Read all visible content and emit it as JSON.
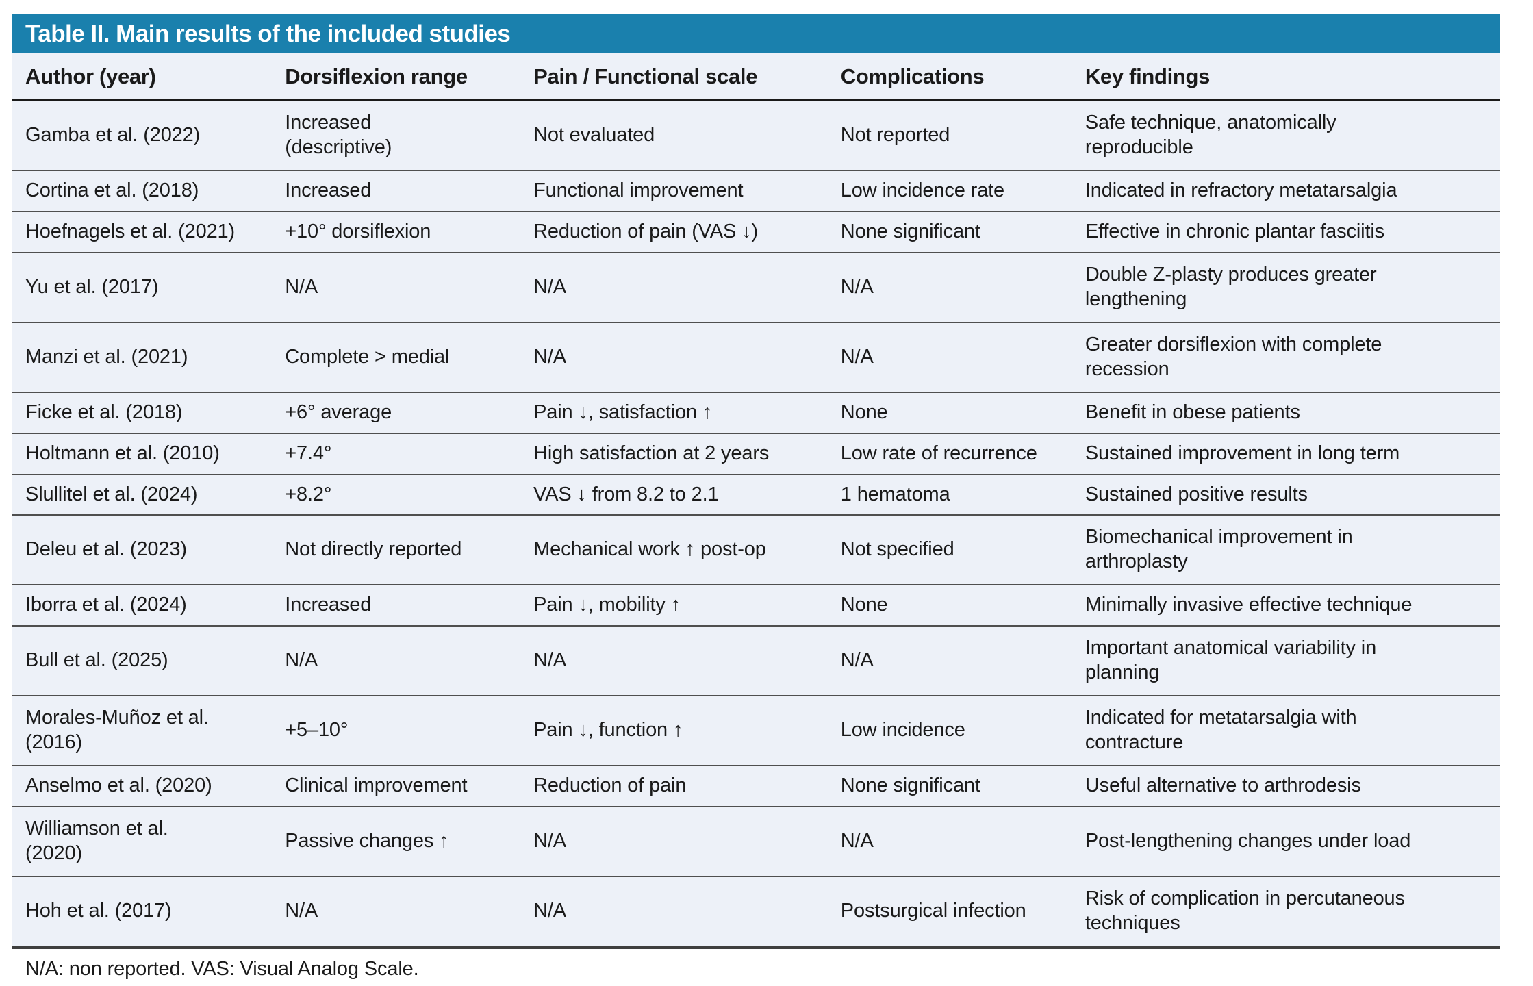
{
  "colors": {
    "header_bg": "#1a80ad",
    "header_text": "#ffffff",
    "row_bg": "#edf1f8",
    "row_line": "#4f4f4f",
    "strong_line": "#1a1a1a",
    "bottom_line": "#3f3f3f",
    "text": "#1a1a1a"
  },
  "table": {
    "title": "Table II. Main results of the included studies",
    "columns": [
      "Author (year)",
      "Dorsiflexion range",
      "Pain / Functional scale",
      "Complications",
      "Key findings"
    ],
    "rows": [
      {
        "author": "Gamba et al. (2022)",
        "dorsiflexion": "Increased\n(descriptive)",
        "pain": "Not evaluated",
        "complications": "Not reported",
        "key_findings": "Safe technique, anatomically\nreproducible"
      },
      {
        "author": "Cortina et al. (2018)",
        "dorsiflexion": "Increased",
        "pain": "Functional improvement",
        "complications": "Low incidence rate",
        "key_findings": "Indicated in refractory metatarsalgia"
      },
      {
        "author": "Hoefnagels et al. (2021)",
        "dorsiflexion": "+10° dorsiflexion",
        "pain": "Reduction of pain (VAS ↓)",
        "complications": "None significant",
        "key_findings": "Effective in chronic plantar fasciitis"
      },
      {
        "author": "Yu et al. (2017)",
        "dorsiflexion": "N/A",
        "pain": "N/A",
        "complications": "N/A",
        "key_findings": "Double Z-plasty produces greater\nlengthening"
      },
      {
        "author": "Manzi et al. (2021)",
        "dorsiflexion": "Complete > medial",
        "pain": "N/A",
        "complications": "N/A",
        "key_findings": "Greater dorsiflexion with complete\nrecession"
      },
      {
        "author": "Ficke et al. (2018)",
        "dorsiflexion": "+6° average",
        "pain": "Pain ↓, satisfaction ↑",
        "complications": "None",
        "key_findings": "Benefit in obese patients"
      },
      {
        "author": "Holtmann et al. (2010)",
        "dorsiflexion": "+7.4°",
        "pain": "High satisfaction at 2 years",
        "complications": "Low rate of recurrence",
        "key_findings": "Sustained improvement in long term"
      },
      {
        "author": "Slullitel et al. (2024)",
        "dorsiflexion": "+8.2°",
        "pain": "VAS ↓ from 8.2 to 2.1",
        "complications": "1 hematoma",
        "key_findings": "Sustained positive results"
      },
      {
        "author": "Deleu et al. (2023)",
        "dorsiflexion": "Not directly reported",
        "pain": "Mechanical work ↑ post-op",
        "complications": "Not specified",
        "key_findings": "Biomechanical improvement in\narthroplasty"
      },
      {
        "author": "Iborra et al. (2024)",
        "dorsiflexion": "Increased",
        "pain": "Pain ↓, mobility ↑",
        "complications": "None",
        "key_findings": "Minimally invasive effective technique"
      },
      {
        "author": "Bull et al. (2025)",
        "dorsiflexion": "N/A",
        "pain": "N/A",
        "complications": "N/A",
        "key_findings": "Important anatomical variability in\nplanning"
      },
      {
        "author": "Morales-Muñoz et al.\n(2016)",
        "dorsiflexion": "+5–10°",
        "pain": "Pain ↓, function ↑",
        "complications": "Low incidence",
        "key_findings": "Indicated for metatarsalgia with\ncontracture"
      },
      {
        "author": "Anselmo et al. (2020)",
        "dorsiflexion": "Clinical improvement",
        "pain": "Reduction of pain",
        "complications": "None significant",
        "key_findings": "Useful alternative to arthrodesis"
      },
      {
        "author": "Williamson et al.\n(2020)",
        "dorsiflexion": "Passive changes ↑",
        "pain": "N/A",
        "complications": "N/A",
        "key_findings": "Post-lengthening changes under load"
      },
      {
        "author": "Hoh et al. (2017)",
        "dorsiflexion": "N/A",
        "pain": "N/A",
        "complications": "Postsurgical infection",
        "key_findings": "Risk of complication in percutaneous\ntechniques"
      }
    ],
    "footnote": "N/A: non reported. VAS: Visual Analog Scale."
  }
}
